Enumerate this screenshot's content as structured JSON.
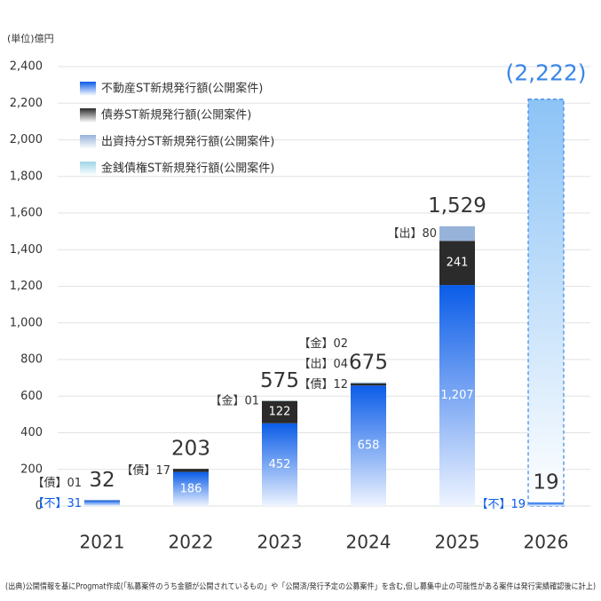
{
  "chart_data": {
    "type": "stacked-bar",
    "y_label": "(単位)億円",
    "footnote": "(出典)公開情報を基にProgmat作成(「私募案件のうち金額が公開されているもの」や「公開済/発行予定の公募案件」を含む,但し募集中止の可能性がある案件は発行実績確認後に計上)",
    "categories": [
      "2021",
      "2022",
      "2023",
      "2024",
      "2025",
      "2026"
    ],
    "series": [
      {
        "name": "不動産ST新規発行額(公開案件)",
        "short": "【不】",
        "color": "#0a5ce8",
        "values": [
          31,
          186,
          452,
          658,
          1207,
          19
        ],
        "value_labels": [
          "31",
          "186",
          "452",
          "658",
          "1,207",
          "19"
        ]
      },
      {
        "name": "債券ST新規発行額(公開案件)",
        "short": "【債】",
        "color": "#2b2b2b",
        "values": [
          1,
          17,
          122,
          12,
          241,
          null
        ],
        "value_labels": [
          "01",
          "17",
          "122",
          "12",
          "241",
          null
        ]
      },
      {
        "name": "出資持分ST新規発行額(公開案件)",
        "short": "【出】",
        "color": "#97b3da",
        "values": [
          null,
          null,
          null,
          4,
          80,
          null
        ],
        "value_labels": [
          null,
          null,
          null,
          "04",
          "80",
          null
        ]
      },
      {
        "name": "金銭債権ST新規発行額(公開案件)",
        "short": "【金】",
        "color": "#9fd6e6",
        "values": [
          null,
          null,
          1,
          2,
          null,
          null
        ],
        "value_labels": [
          null,
          null,
          "01",
          "02",
          null,
          null
        ]
      }
    ],
    "totals": {
      "values": [
        32,
        203,
        575,
        675,
        1529,
        19
      ],
      "value_labels": [
        "32",
        "203",
        "575",
        "675",
        "1,529",
        "19"
      ]
    },
    "forecast": {
      "color": "#3a86e8",
      "values": [
        null,
        null,
        null,
        null,
        null,
        2222
      ],
      "value_labels": [
        null,
        null,
        null,
        null,
        null,
        "(2,222)"
      ]
    },
    "ylim": [
      0,
      2400
    ],
    "yticks": [
      0,
      200,
      400,
      600,
      800,
      {
        "value": 1000,
        "label": "1,000"
      },
      {
        "value": 1200,
        "label": "1,200"
      },
      {
        "value": 1400,
        "label": "1,400"
      },
      {
        "value": 1600,
        "label": "1,600"
      },
      {
        "value": 1800,
        "label": "1,800"
      },
      {
        "value": 2000,
        "label": "2,000"
      },
      {
        "value": 2200,
        "label": "2,200"
      },
      {
        "value": 2400,
        "label": "2,400"
      }
    ],
    "grid": true
  }
}
